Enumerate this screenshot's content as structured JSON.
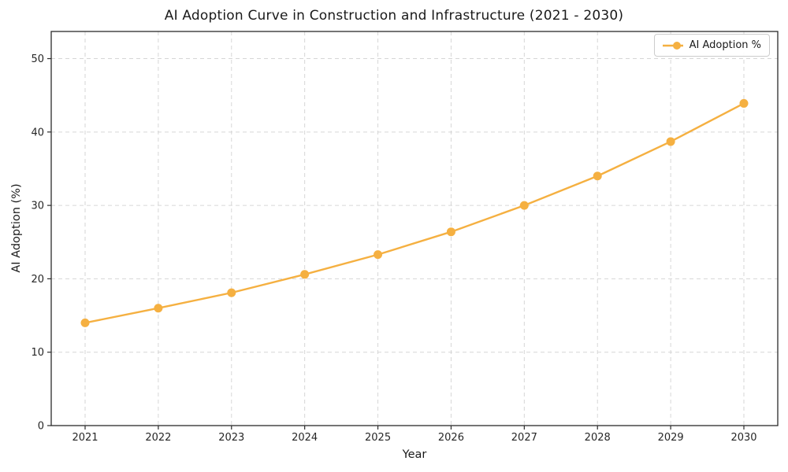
{
  "figure": {
    "background": "#ffffff"
  },
  "chart_data": {
    "type": "line",
    "title": "AI Adoption Curve in Construction and Infrastructure (2021 - 2030)",
    "xlabel": "Year",
    "ylabel": "AI Adoption (%)",
    "x": [
      2021,
      2022,
      2023,
      2024,
      2025,
      2026,
      2027,
      2028,
      2029,
      2030
    ],
    "series": [
      {
        "name": "AI Adoption %",
        "values": [
          14.0,
          16.0,
          18.1,
          20.6,
          23.3,
          26.4,
          30.0,
          34.0,
          38.7,
          43.9
        ],
        "color": "#F5B041",
        "marker": "circle"
      }
    ],
    "ylim": [
      0,
      53.7
    ],
    "yticks": [
      0,
      10,
      20,
      30,
      40,
      50
    ],
    "grid": {
      "visible": true,
      "style": "dashed",
      "color": "#d0d0d0",
      "opacity": 0.85
    },
    "legend": {
      "position": "upper right",
      "labels": [
        "AI Adoption %"
      ]
    }
  },
  "colors": {
    "line": "#F5B041",
    "marker": "#F5B041",
    "spine": "#2b2b2b",
    "tick": "#2b2b2b",
    "text": "#1a1a1a",
    "grid": "#d0d0d0",
    "legend_border": "#cccccc"
  }
}
